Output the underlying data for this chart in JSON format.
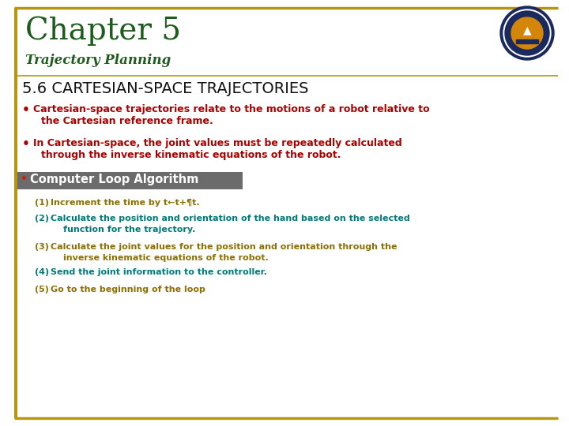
{
  "bg_color": "#ffffff",
  "border_color": "#b8960c",
  "title_text": "Chapter 5",
  "title_color": "#1e5c1e",
  "subtitle_text": "Trajectory Planning",
  "subtitle_color": "#1e5c1e",
  "section_title": "5.6 CARTESIAN-SPACE TRAJECTORIES",
  "section_title_color": "#111111",
  "bullet_color": "#aa0000",
  "bullet_dot_color": "#aa0000",
  "bullet1_line1": "Cartesian-space trajectories relate to the motions of a robot relative to",
  "bullet1_line2": "the Cartesian reference frame.",
  "bullet2_line1": "In Cartesian-space, the joint values must be repeatedly calculated",
  "bullet2_line2": "through the inverse kinematic equations of the robot.",
  "algo_box_color": "#6b6b6b",
  "algo_bullet_color": "#cc2200",
  "algo_text": "Computer Loop Algorithm",
  "algo_text_color": "#ffffff",
  "step1_num": "(1)",
  "step1_text": "Increment the time by t←t+¶t.",
  "step1_color": "#8B7000",
  "step2_num": "(2)",
  "step2_line1": "Calculate the position and orientation of the hand based on the selected",
  "step2_line2": "function for the trajectory.",
  "step2_color": "#007a7a",
  "step3_num": "(3)",
  "step3_line1": "Calculate the joint values for the position and orientation through the",
  "step3_line2": "inverse kinematic equations of the robot.",
  "step3_color": "#8B7000",
  "step4_num": "(4)",
  "step4_text": "Send the joint information to the controller.",
  "step4_color": "#007a7a",
  "step5_num": "(5)",
  "step5_text": "Go to the beginning of the loop",
  "step5_color": "#8B7000"
}
